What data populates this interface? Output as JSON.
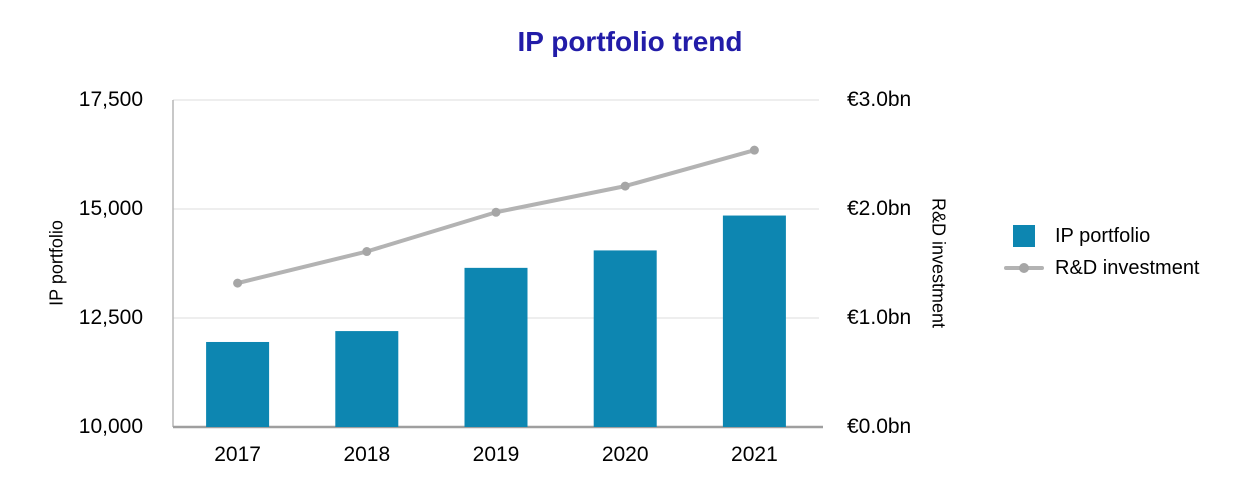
{
  "title": "IP portfolio trend",
  "colors": {
    "title": "#221ca8",
    "bar": "#0d86b1",
    "line": "#b3b3b3",
    "marker": "#a6a6a6",
    "grid": "#e9e9e9",
    "axis_bottom": "#9f9f9f",
    "axis_left": "#b5b5b5",
    "text": "#000000"
  },
  "chart_data": {
    "type": "bar",
    "title": "IP portfolio trend",
    "categories": [
      "2017",
      "2018",
      "2019",
      "2020",
      "2021"
    ],
    "series": [
      {
        "name": "IP portfolio",
        "type": "bar",
        "axis": "left",
        "values": [
          11950,
          12200,
          13650,
          14050,
          14850
        ]
      },
      {
        "name": "R&D investment",
        "type": "line",
        "axis": "right",
        "values": [
          1.32,
          1.61,
          1.97,
          2.21,
          2.54
        ]
      }
    ],
    "left_axis": {
      "label": "IP portfolio",
      "min": 10000,
      "max": 17500,
      "ticks": [
        10000,
        12500,
        15000,
        17500
      ],
      "tick_labels": [
        "10,000",
        "12,500",
        "15,000",
        "17,500"
      ]
    },
    "right_axis": {
      "label": "R&D investment",
      "min": 0,
      "max": 3,
      "ticks": [
        0,
        1,
        2,
        3
      ],
      "tick_labels": [
        "€0.0bn",
        "€1.0bn",
        "€2.0bn",
        "€3.0bn"
      ]
    },
    "grid": "horizontal",
    "legend": {
      "position": "right",
      "items": [
        {
          "label": "IP portfolio",
          "swatch": "square"
        },
        {
          "label": "R&D investment",
          "swatch": "line-dot"
        }
      ]
    }
  }
}
